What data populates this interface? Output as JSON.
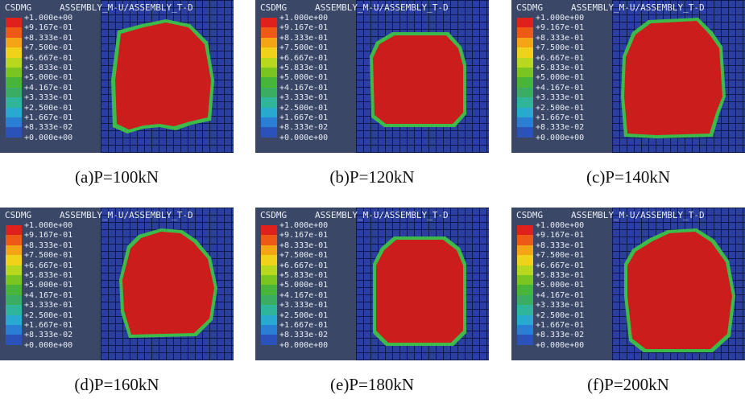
{
  "header": {
    "label": "CSDMG",
    "assembly": "ASSEMBLY_M-U/ASSEMBLY_T-D"
  },
  "legend": {
    "labels": [
      "+1.000e+00",
      "+9.167e-01",
      "+8.333e-01",
      "+7.500e-01",
      "+6.667e-01",
      "+5.833e-01",
      "+5.000e-01",
      "+4.167e-01",
      "+3.333e-01",
      "+2.500e-01",
      "+1.667e-01",
      "+8.333e-02",
      "+0.000e+00"
    ],
    "colors": [
      "#e0201c",
      "#ee5a16",
      "#f4a516",
      "#f0d21a",
      "#b7d81e",
      "#7ac51f",
      "#47b43a",
      "#3aad62",
      "#2fb59a",
      "#2aa9d0",
      "#2a7fd4",
      "#2b52b8"
    ]
  },
  "panels": [
    {
      "caption": "(a)P=100kN",
      "load_kN": 100
    },
    {
      "caption": "(b)P=120kN",
      "load_kN": 120
    },
    {
      "caption": "(c)P=140kN",
      "load_kN": 140
    },
    {
      "caption": "(d)P=160kN",
      "load_kN": 160
    },
    {
      "caption": "(e)P=180kN",
      "load_kN": 180
    },
    {
      "caption": "(f)P=200kN",
      "load_kN": 200
    }
  ],
  "colors": {
    "damage_full": "#cc1d1d",
    "damage_edge": "#3dbb4a",
    "mesh_base": "#2b3fa0",
    "background": "#3d4a6b"
  }
}
